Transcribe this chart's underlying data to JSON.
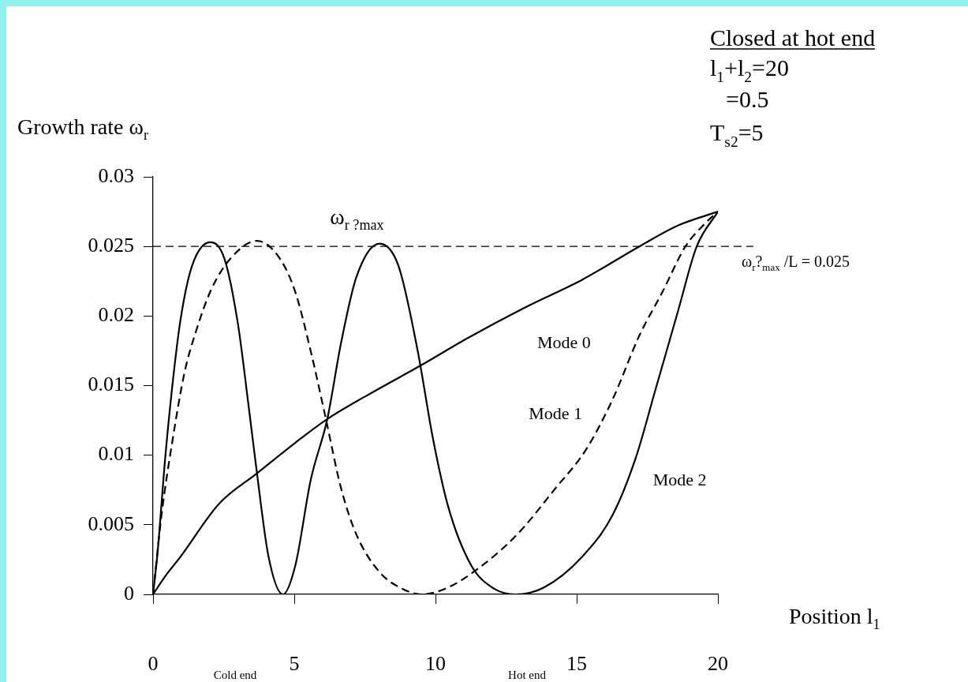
{
  "chart_data": {
    "type": "line",
    "xlabel": "Position l$_{1}$",
    "ylabel": "Growth rate ω$_{r}$",
    "xlim": [
      0,
      20
    ],
    "xticks": [
      0,
      5,
      10,
      15,
      20
    ],
    "ylim": [
      0,
      0.03
    ],
    "yticks": [
      0,
      0.005,
      0.01,
      0.015,
      0.02,
      0.025,
      0.03
    ],
    "series": [
      {
        "name": "Mode 0",
        "color": "#000000",
        "line_style": "solid",
        "x": [
          0,
          0.43,
          0.97,
          2.33,
          3.68,
          5.04,
          6.17,
          8.02,
          9.44,
          11.13,
          13.16,
          15.19,
          17.22,
          18.58,
          20
        ],
        "values": [
          0,
          0.0013,
          0.0027,
          0.0065,
          0.0087,
          0.0109,
          0.0126,
          0.0148,
          0.0164,
          0.0184,
          0.0206,
          0.0226,
          0.025,
          0.0265,
          0.0275
        ]
      },
      {
        "name": "Mode 1",
        "color": "#000000",
        "line_style": "dashed",
        "x": [
          0,
          0.3,
          0.7,
          1.11,
          1.52,
          2.06,
          2.73,
          3.68,
          4.5,
          5.04,
          5.58,
          6.12,
          6.66,
          7.2,
          8.02,
          8.83,
          9.5,
          10.45,
          11.54,
          12.89,
          14.24,
          15.33,
          16.27,
          17.22,
          18.03,
          18.85,
          19.52,
          20
        ],
        "values": [
          0,
          0.0057,
          0.0112,
          0.0159,
          0.0189,
          0.0219,
          0.0241,
          0.0254,
          0.0241,
          0.0217,
          0.0175,
          0.0126,
          0.0076,
          0.0043,
          0.0016,
          0.0004,
          0,
          0.0005,
          0.0019,
          0.0043,
          0.0076,
          0.0104,
          0.014,
          0.0186,
          0.0217,
          0.025,
          0.0266,
          0.0275
        ]
      },
      {
        "name": "Mode 2",
        "color": "#000000",
        "line_style": "solid",
        "x": [
          0,
          0.16,
          0.43,
          0.7,
          0.97,
          1.38,
          2.03,
          2.53,
          3.0,
          3.41,
          3.68,
          4.09,
          4.6,
          5.04,
          5.58,
          6.17,
          6.66,
          7.2,
          8.02,
          8.69,
          9.37,
          9.91,
          10.45,
          11.26,
          12.08,
          12.82,
          13.84,
          15.19,
          16.27,
          17.09,
          17.76,
          18.58,
          19.25,
          20
        ],
        "values": [
          0,
          0.003,
          0.0098,
          0.0153,
          0.0197,
          0.0236,
          0.0253,
          0.0241,
          0.0195,
          0.0131,
          0.0087,
          0.0027,
          0,
          0.0021,
          0.0082,
          0.0126,
          0.0181,
          0.0228,
          0.0252,
          0.0236,
          0.0175,
          0.0112,
          0.0063,
          0.0021,
          0.0004,
          0,
          0.0005,
          0.0027,
          0.0057,
          0.0098,
          0.0145,
          0.0203,
          0.025,
          0.0275
        ]
      }
    ],
    "ref_lines": [
      {
        "axis": "y",
        "value": 0.025,
        "label": "ω$_{r}$?$_{max}$ /L = 0.025",
        "line_style": "dashed",
        "color": "#000000"
      }
    ],
    "annotations": [
      "Closed at hot end",
      "l$_{1}$+l$_{2}$=20",
      "=0.5",
      "T$_{s2}$=5",
      "ω$_{r ?max}$",
      "Cold end",
      "Hot end"
    ]
  }
}
